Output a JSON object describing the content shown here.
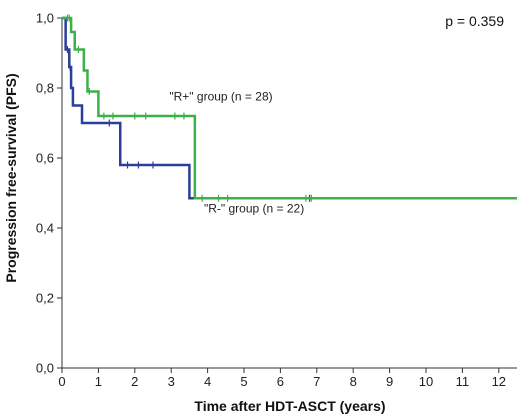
{
  "chart_data": {
    "type": "line",
    "subtype": "kaplan-meier step",
    "title": "",
    "xlabel": "Time after HDT-ASCT (years)",
    "ylabel": "Progression free-survival (PFS)",
    "xlim": [
      0,
      12.5
    ],
    "ylim": [
      0,
      1.0
    ],
    "x_ticks": [
      0,
      1,
      2,
      3,
      4,
      5,
      6,
      7,
      8,
      9,
      10,
      11,
      12
    ],
    "y_ticks": [
      0.0,
      0.2,
      0.4,
      0.6,
      0.8,
      1.0
    ],
    "y_tick_labels": [
      "0,0",
      "0,2",
      "0,4",
      "0,6",
      "0,8",
      "1,0"
    ],
    "x_tick_labels": [
      "0",
      "1",
      "2",
      "3",
      "4",
      "5",
      "6",
      "7",
      "8",
      "9",
      "10",
      "11",
      "12"
    ],
    "grid": false,
    "annotation": "p = 0.359",
    "series": [
      {
        "name": "\"R+\" group (n = 28)",
        "color": "#3cb04a",
        "steps": [
          [
            0,
            1.0
          ],
          [
            0.25,
            0.96
          ],
          [
            0.35,
            0.91
          ],
          [
            0.6,
            0.85
          ],
          [
            0.7,
            0.79
          ],
          [
            1.0,
            0.72
          ],
          [
            3.65,
            0.485
          ],
          [
            12.5,
            0.485
          ]
        ],
        "censored": [
          [
            0.15,
            1.0
          ],
          [
            0.2,
            1.0
          ],
          [
            0.45,
            0.91
          ],
          [
            0.75,
            0.79
          ],
          [
            1.15,
            0.72
          ],
          [
            1.4,
            0.72
          ],
          [
            2.0,
            0.72
          ],
          [
            2.3,
            0.72
          ],
          [
            3.1,
            0.72
          ],
          [
            3.35,
            0.72
          ],
          [
            3.85,
            0.485
          ],
          [
            4.3,
            0.485
          ],
          [
            4.55,
            0.485
          ],
          [
            6.7,
            0.485
          ],
          [
            6.85,
            0.485
          ]
        ]
      },
      {
        "name": "\"R-\" group (n = 22)",
        "color": "#2b3f9a",
        "steps": [
          [
            0,
            1.0
          ],
          [
            0.1,
            0.91
          ],
          [
            0.2,
            0.86
          ],
          [
            0.25,
            0.8
          ],
          [
            0.3,
            0.75
          ],
          [
            0.55,
            0.7
          ],
          [
            1.6,
            0.58
          ],
          [
            3.5,
            0.485
          ],
          [
            12.5,
            0.485
          ]
        ],
        "censored": [
          [
            0.15,
            0.91
          ],
          [
            0.22,
            0.86
          ],
          [
            1.3,
            0.7
          ],
          [
            1.8,
            0.58
          ],
          [
            2.1,
            0.58
          ],
          [
            2.5,
            0.58
          ],
          [
            6.8,
            0.485
          ]
        ]
      }
    ],
    "series_labels": [
      {
        "text": "\"R+\" group (n = 28)",
        "x": 2.95,
        "y": 0.765
      },
      {
        "text": "\"R-\" group (n = 22)",
        "x": 3.9,
        "y": 0.445
      }
    ]
  }
}
